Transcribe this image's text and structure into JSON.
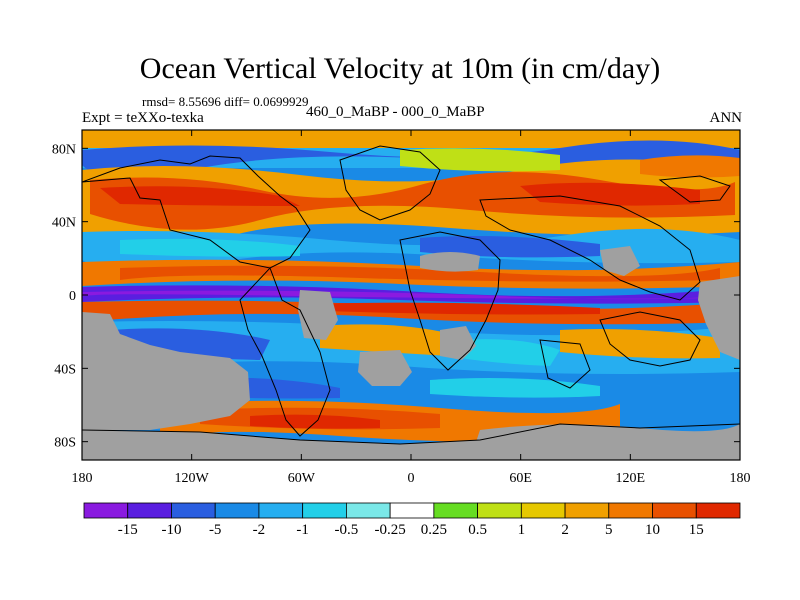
{
  "chart_data": {
    "type": "heatmap",
    "title": "Ocean Vertical Velocity at 10m (in cm/day)",
    "stats_text": "rmsd= 8.55696 diff= 0.0699929",
    "left_label": "Expt = teXXo-texka",
    "center_label": "460_0_MaBP - 000_0_MaBP",
    "right_label": "ANN",
    "x_ticks": [
      {
        "value": -180,
        "label": "180"
      },
      {
        "value": -120,
        "label": "120W"
      },
      {
        "value": -60,
        "label": "60W"
      },
      {
        "value": 0,
        "label": "0"
      },
      {
        "value": 60,
        "label": "60E"
      },
      {
        "value": 120,
        "label": "120E"
      },
      {
        "value": 180,
        "label": "180"
      }
    ],
    "y_ticks": [
      {
        "value": 80,
        "label": "80N"
      },
      {
        "value": 40,
        "label": "40N"
      },
      {
        "value": 0,
        "label": "0"
      },
      {
        "value": -40,
        "label": "40S"
      },
      {
        "value": -80,
        "label": "80S"
      }
    ],
    "xlim": [
      -180,
      180
    ],
    "ylim": [
      -90,
      90
    ],
    "colorbar": {
      "labels": [
        "-15",
        "-10",
        "-5",
        "-2",
        "-1",
        "-0.5",
        "-0.25",
        "0.25",
        "0.5",
        "1",
        "2",
        "5",
        "10",
        "15"
      ],
      "colors": [
        "#8a1ae0",
        "#5a1ee0",
        "#2a5ee0",
        "#1a8ae6",
        "#26aef0",
        "#22cfe8",
        "#7ae8e8",
        "#ffffff",
        "#66dd22",
        "#bfe016",
        "#e6c800",
        "#f0a000",
        "#f07800",
        "#e85000",
        "#e02800"
      ]
    }
  }
}
